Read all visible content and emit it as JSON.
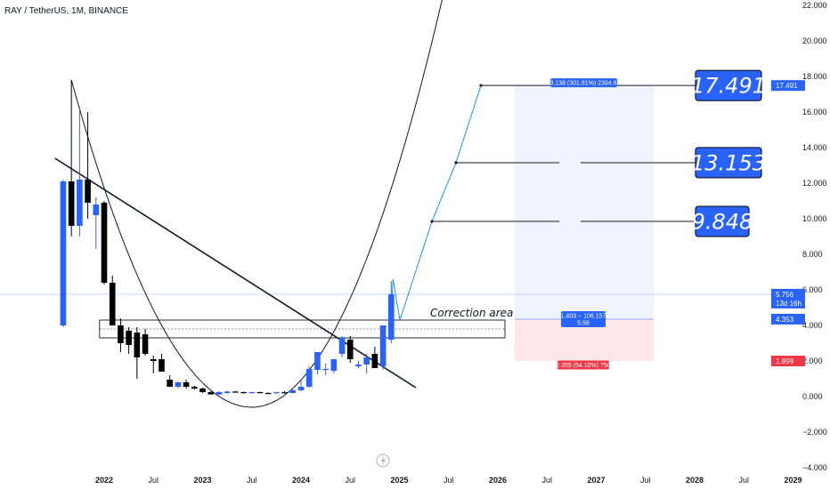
{
  "header": {
    "title": "RAY / TetherUS, 1M, BINANCE"
  },
  "chart_data": {
    "type": "candlestick",
    "symbol": "RAY / TetherUS",
    "interval": "1M",
    "exchange": "BINANCE",
    "ylim": [
      -4,
      22
    ],
    "yticks": [
      "22.000",
      "20.000",
      "18.000",
      "16.000",
      "14.000",
      "12.000",
      "10.000",
      "8.000",
      "6.000",
      "4.000",
      "2.000",
      "0.000",
      "−2.000",
      "−4.000"
    ],
    "xticks": [
      "2022",
      "Jul",
      "2023",
      "Jul",
      "2024",
      "Jul",
      "2025",
      "Jul",
      "2026",
      "Jul",
      "2027",
      "Jul",
      "2028",
      "Jul",
      "2029"
    ],
    "candles": [
      {
        "t": "2021-08",
        "o": 4.0,
        "h": 12.2,
        "l": 3.9,
        "c": 12.1
      },
      {
        "t": "2021-09",
        "o": 12.1,
        "h": 17.8,
        "l": 9.0,
        "c": 9.6
      },
      {
        "t": "2021-10",
        "o": 9.6,
        "h": 16.3,
        "l": 9.0,
        "c": 12.2
      },
      {
        "t": "2021-11",
        "o": 12.2,
        "h": 16.0,
        "l": 10.0,
        "c": 10.9
      },
      {
        "t": "2021-12",
        "o": 10.2,
        "h": 11.2,
        "l": 8.3,
        "c": 10.8
      },
      {
        "t": "2022-01",
        "o": 10.9,
        "h": 11.0,
        "l": 6.3,
        "c": 6.4
      },
      {
        "t": "2022-02",
        "o": 6.4,
        "h": 6.8,
        "l": 4.0,
        "c": 4.0
      },
      {
        "t": "2022-03",
        "o": 4.0,
        "h": 4.4,
        "l": 2.5,
        "c": 3.0
      },
      {
        "t": "2022-04",
        "o": 3.7,
        "h": 3.9,
        "l": 2.4,
        "c": 2.9
      },
      {
        "t": "2022-05",
        "o": 3.6,
        "h": 3.9,
        "l": 1.0,
        "c": 2.2
      },
      {
        "t": "2022-06",
        "o": 3.5,
        "h": 3.8,
        "l": 2.3,
        "c": 2.4
      },
      {
        "t": "2022-07",
        "o": 2.1,
        "h": 2.3,
        "l": 1.3,
        "c": 2.0
      },
      {
        "t": "2022-08",
        "o": 2.1,
        "h": 2.4,
        "l": 1.4,
        "c": 1.4
      },
      {
        "t": "2022-09",
        "o": 0.95,
        "h": 1.2,
        "l": 0.55,
        "c": 0.55
      },
      {
        "t": "2022-10",
        "o": 0.55,
        "h": 0.85,
        "l": 0.45,
        "c": 0.8
      },
      {
        "t": "2022-11",
        "o": 0.8,
        "h": 0.95,
        "l": 0.45,
        "c": 0.55
      },
      {
        "t": "2022-12",
        "o": 0.55,
        "h": 0.6,
        "l": 0.4,
        "c": 0.45
      },
      {
        "t": "2023-01",
        "o": 0.45,
        "h": 0.5,
        "l": 0.2,
        "c": 0.25
      },
      {
        "t": "2023-02",
        "o": 0.25,
        "h": 0.3,
        "l": 0.12,
        "c": 0.12
      },
      {
        "t": "2023-03",
        "o": 0.12,
        "h": 0.3,
        "l": 0.08,
        "c": 0.25
      },
      {
        "t": "2023-04",
        "o": 0.2,
        "h": 0.32,
        "l": 0.15,
        "c": 0.28
      },
      {
        "t": "2023-05",
        "o": 0.28,
        "h": 0.32,
        "l": 0.22,
        "c": 0.25
      },
      {
        "t": "2023-06",
        "o": 0.25,
        "h": 0.28,
        "l": 0.17,
        "c": 0.22
      },
      {
        "t": "2023-07",
        "o": 0.22,
        "h": 0.27,
        "l": 0.18,
        "c": 0.25
      },
      {
        "t": "2023-08",
        "o": 0.25,
        "h": 0.27,
        "l": 0.18,
        "c": 0.2
      },
      {
        "t": "2023-09",
        "o": 0.2,
        "h": 0.24,
        "l": 0.16,
        "c": 0.18
      },
      {
        "t": "2023-10",
        "o": 0.18,
        "h": 0.27,
        "l": 0.17,
        "c": 0.24
      },
      {
        "t": "2023-11",
        "o": 0.24,
        "h": 0.3,
        "l": 0.16,
        "c": 0.2
      },
      {
        "t": "2023-12",
        "o": 0.2,
        "h": 0.42,
        "l": 0.18,
        "c": 0.35
      },
      {
        "t": "2024-01",
        "o": 0.35,
        "h": 0.9,
        "l": 0.3,
        "c": 0.55
      },
      {
        "t": "2024-02",
        "o": 0.55,
        "h": 1.7,
        "l": 0.5,
        "c": 1.55
      },
      {
        "t": "2024-03",
        "o": 1.5,
        "h": 2.5,
        "l": 1.25,
        "c": 2.5
      },
      {
        "t": "2024-04",
        "o": 1.55,
        "h": 1.85,
        "l": 1.2,
        "c": 1.55
      },
      {
        "t": "2024-05",
        "o": 1.45,
        "h": 2.1,
        "l": 1.3,
        "c": 2.1
      },
      {
        "t": "2024-06",
        "o": 2.4,
        "h": 3.4,
        "l": 2.2,
        "c": 3.3
      },
      {
        "t": "2024-07",
        "o": 3.2,
        "h": 3.4,
        "l": 1.9,
        "c": 2.1
      },
      {
        "t": "2024-08",
        "o": 1.7,
        "h": 2.0,
        "l": 1.6,
        "c": 1.8
      },
      {
        "t": "2024-09",
        "o": 1.8,
        "h": 2.4,
        "l": 1.3,
        "c": 2.2
      },
      {
        "t": "2024-10",
        "o": 2.4,
        "h": 2.8,
        "l": 1.6,
        "c": 1.6
      },
      {
        "t": "2024-11",
        "o": 1.7,
        "h": 4.0,
        "l": 1.5,
        "c": 4.0
      },
      {
        "t": "2024-12",
        "o": 3.2,
        "h": 6.5,
        "l": 3.0,
        "c": 5.756
      }
    ],
    "current_price": "5.756",
    "countdown": "13d 16h",
    "entry_price": "4.353",
    "stop_price": "1.998",
    "targets": [
      "9.848",
      "13.153",
      "17.491"
    ],
    "right_axis_target_label": "17.491",
    "position_stats": {
      "target": "13.138 (301.81%) 2394.69",
      "entry_line1": "1.403 − 106.157",
      "entry_line2": "5.58",
      "stop": "2.355 (54.10%) 750"
    },
    "annotations": [
      "Correction area"
    ],
    "colors": {
      "up": "#2962ff",
      "down": "#000000",
      "projection": "#2196f3",
      "target_box": "#2962ff",
      "stop_label": "#f23645",
      "profit_zone": "#2962ff",
      "loss_zone": "#f23645"
    }
  }
}
